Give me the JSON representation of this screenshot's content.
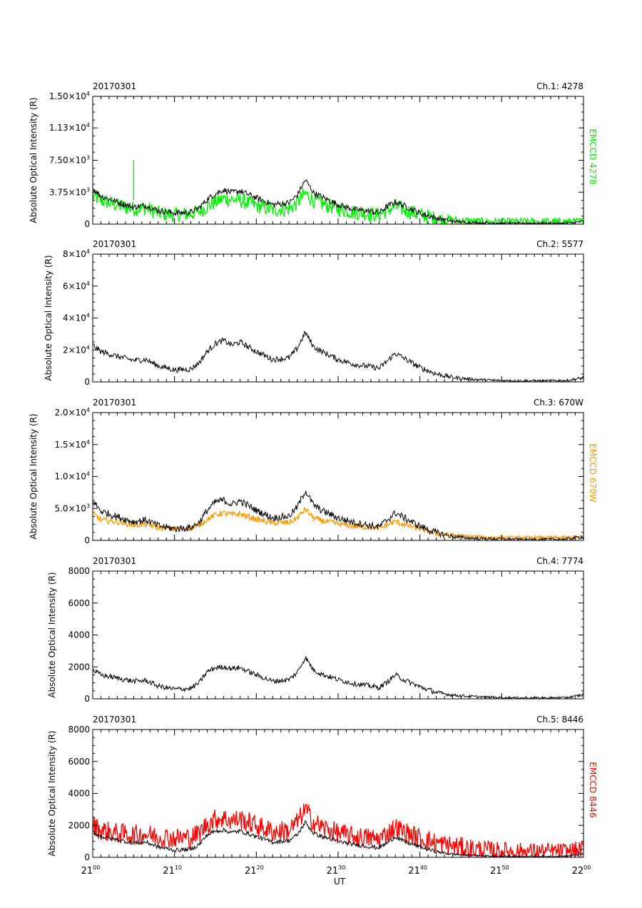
{
  "date": "20170301",
  "ylabel": "Absolute Optical Intensity (R)",
  "xlabel": "UT",
  "xaxis": {
    "range_min": [
      0,
      60
    ],
    "ticks": [
      {
        "min": 0,
        "hour": "21",
        "minute": "00"
      },
      {
        "min": 10,
        "hour": "21",
        "minute": "10"
      },
      {
        "min": 20,
        "hour": "21",
        "minute": "20"
      },
      {
        "min": 30,
        "hour": "21",
        "minute": "30"
      },
      {
        "min": 40,
        "hour": "21",
        "minute": "40"
      },
      {
        "min": 50,
        "hour": "21",
        "minute": "50"
      },
      {
        "min": 60,
        "hour": "22",
        "minute": "00"
      }
    ]
  },
  "colors": {
    "reference": "#000000",
    "ch1": "#00ee00",
    "ch3": "#ff9900",
    "ch5": "#ff0000"
  },
  "chart_data": [
    {
      "type": "line",
      "channel_label": "Ch.1: 4278",
      "date_label": "20170301",
      "ylim": [
        0,
        15000
      ],
      "yticks": [
        {
          "v": 0,
          "m": "0"
        },
        {
          "v": 3750,
          "m": "3.75",
          "e": "3"
        },
        {
          "v": 7500,
          "m": "7.50",
          "e": "3"
        },
        {
          "v": 11300,
          "m": "1.13",
          "e": "4"
        },
        {
          "v": 15000,
          "m": "1.50",
          "e": "4"
        }
      ],
      "right_label": "EMCCD 4278",
      "right_color": "#00ee00",
      "series": [
        {
          "name": "EMCCD 4278",
          "color": "#00ee00",
          "noise": 900,
          "x": [
            0,
            1,
            3,
            5,
            6.5,
            8,
            10,
            12,
            13,
            14,
            15,
            16,
            17,
            18,
            20,
            22,
            24,
            25,
            26,
            27,
            28,
            30,
            32,
            34,
            35,
            36,
            37,
            38,
            40,
            42,
            44,
            46,
            48,
            50,
            52,
            54,
            56,
            58,
            60
          ],
          "y": [
            3300,
            2800,
            2200,
            1800,
            1900,
            1300,
            1100,
            1200,
            1500,
            2100,
            2600,
            3000,
            2900,
            2800,
            2200,
            1700,
            1800,
            2500,
            3600,
            2800,
            2400,
            1800,
            1400,
            1200,
            1100,
            1600,
            2100,
            1700,
            1100,
            700,
            450,
            350,
            300,
            280,
            300,
            300,
            300,
            300,
            300
          ]
        },
        {
          "color": "#000000",
          "noise": 350,
          "x": [
            0,
            1,
            3,
            5,
            6.5,
            8,
            10,
            12,
            13,
            14,
            15,
            16,
            17,
            18,
            20,
            22,
            24,
            25,
            26,
            27,
            28,
            30,
            32,
            34,
            35,
            36,
            37,
            38,
            40,
            42,
            44,
            46,
            48,
            50,
            52,
            54,
            56,
            58,
            60
          ],
          "y": [
            4200,
            3300,
            2600,
            2000,
            2200,
            1600,
            1300,
            1400,
            1900,
            2900,
            3600,
            4000,
            3700,
            3900,
            3100,
            2300,
            2500,
            3400,
            5200,
            3700,
            3200,
            2300,
            1700,
            1500,
            1300,
            2100,
            2600,
            2200,
            1300,
            700,
            350,
            200,
            150,
            100,
            100,
            100,
            100,
            120,
            300
          ]
        },
        {
          "color": "#00ee00",
          "x": [
            5,
            5,
            5
          ],
          "y": [
            2800,
            7500,
            2800
          ]
        }
      ]
    },
    {
      "type": "line",
      "channel_label": "Ch.2: 5577",
      "date_label": "20170301",
      "ylim": [
        0,
        80000
      ],
      "yticks": [
        {
          "v": 0,
          "m": "0"
        },
        {
          "v": 20000,
          "m": "2",
          "e": "4"
        },
        {
          "v": 40000,
          "m": "4",
          "e": "4"
        },
        {
          "v": 60000,
          "m": "6",
          "e": "4"
        },
        {
          "v": 80000,
          "m": "8",
          "e": "4"
        }
      ],
      "series": [
        {
          "color": "#000000",
          "noise": 1800,
          "x": [
            0,
            1,
            3,
            5,
            6.5,
            8,
            10,
            12,
            13,
            14,
            15,
            16,
            17,
            18,
            20,
            22,
            24,
            25,
            26,
            27,
            28,
            30,
            32,
            34,
            35,
            36,
            37,
            38,
            40,
            42,
            44,
            46,
            48,
            50,
            52,
            54,
            56,
            58,
            60
          ],
          "y": [
            23000,
            19000,
            16000,
            13500,
            14000,
            10000,
            7500,
            8000,
            12000,
            19000,
            24000,
            26000,
            23000,
            25000,
            19000,
            14000,
            15000,
            21000,
            31000,
            22000,
            19000,
            14000,
            11000,
            9500,
            8500,
            13000,
            18000,
            15000,
            9000,
            5000,
            2800,
            1800,
            1200,
            900,
            700,
            700,
            700,
            900,
            2500
          ]
        }
      ]
    },
    {
      "type": "line",
      "channel_label": "Ch.3: 670W",
      "date_label": "20170301",
      "ylim": [
        0,
        20000
      ],
      "yticks": [
        {
          "v": 0,
          "m": "0"
        },
        {
          "v": 5000,
          "m": "5.0",
          "e": "3"
        },
        {
          "v": 10000,
          "m": "1.0",
          "e": "4"
        },
        {
          "v": 15000,
          "m": "1.5",
          "e": "4"
        },
        {
          "v": 20000,
          "m": "2.0",
          "e": "4"
        }
      ],
      "right_label": "EMCCD 670W",
      "right_color": "#ff9900",
      "series": [
        {
          "name": "EMCCD 670W",
          "color": "#ff9900",
          "noise": 450,
          "x": [
            0,
            1,
            3,
            5,
            6.5,
            8,
            10,
            12,
            13,
            14,
            15,
            16,
            17,
            18,
            20,
            22,
            24,
            25,
            26,
            27,
            28,
            30,
            32,
            34,
            35,
            36,
            37,
            38,
            40,
            42,
            44,
            46,
            48,
            50,
            52,
            54,
            56,
            58,
            60
          ],
          "y": [
            4200,
            3200,
            2900,
            2400,
            2500,
            2000,
            1800,
            1900,
            2400,
            3300,
            4000,
            4300,
            4000,
            4100,
            3300,
            2700,
            2800,
            3500,
            4900,
            3500,
            3100,
            2600,
            2200,
            2100,
            1900,
            2400,
            3000,
            2500,
            1800,
            1100,
            800,
            600,
            500,
            450,
            450,
            450,
            450,
            450,
            500
          ]
        },
        {
          "color": "#000000",
          "noise": 550,
          "x": [
            0,
            1,
            3,
            5,
            6.5,
            8,
            10,
            12,
            13,
            14,
            15,
            16,
            17,
            18,
            20,
            22,
            24,
            25,
            26,
            27,
            28,
            30,
            32,
            34,
            35,
            36,
            37,
            38,
            40,
            42,
            44,
            46,
            48,
            50,
            52,
            54,
            56,
            58,
            60
          ],
          "y": [
            6200,
            4600,
            3700,
            2900,
            3200,
            2300,
            1800,
            2000,
            2800,
            4700,
            6000,
            6300,
            5600,
            6200,
            4700,
            3500,
            3800,
            5200,
            7800,
            5500,
            4700,
            3500,
            2800,
            2300,
            2100,
            3200,
            4300,
            3600,
            2200,
            1200,
            600,
            350,
            250,
            200,
            150,
            150,
            150,
            200,
            600
          ]
        }
      ]
    },
    {
      "type": "line",
      "channel_label": "Ch.4: 7774",
      "date_label": "20170301",
      "ylim": [
        0,
        8000
      ],
      "yticks": [
        {
          "v": 0,
          "m": "0"
        },
        {
          "v": 2000,
          "m": "2000"
        },
        {
          "v": 4000,
          "m": "4000"
        },
        {
          "v": 6000,
          "m": "6000"
        },
        {
          "v": 8000,
          "m": "8000"
        }
      ],
      "series": [
        {
          "color": "#000000",
          "noise": 160,
          "x": [
            0,
            1,
            3,
            5,
            6.5,
            8,
            10,
            12,
            13,
            14,
            15,
            16,
            17,
            18,
            20,
            22,
            24,
            25,
            26,
            27,
            28,
            30,
            32,
            34,
            35,
            36,
            37,
            38,
            40,
            42,
            44,
            46,
            48,
            50,
            52,
            54,
            56,
            58,
            60
          ],
          "y": [
            1800,
            1500,
            1300,
            1100,
            1150,
            800,
            600,
            650,
            1000,
            1700,
            1950,
            2000,
            1900,
            1950,
            1500,
            1100,
            1200,
            1650,
            2600,
            1800,
            1550,
            1200,
            950,
            800,
            700,
            1050,
            1500,
            1200,
            750,
            400,
            230,
            160,
            110,
            80,
            60,
            60,
            60,
            80,
            250
          ]
        }
      ]
    },
    {
      "type": "line",
      "channel_label": "Ch.5: 8446",
      "date_label": "20170301",
      "ylim": [
        0,
        8000
      ],
      "yticks": [
        {
          "v": 0,
          "m": "0"
        },
        {
          "v": 2000,
          "m": "2000"
        },
        {
          "v": 4000,
          "m": "4000"
        },
        {
          "v": 6000,
          "m": "6000"
        },
        {
          "v": 8000,
          "m": "8000"
        }
      ],
      "right_label": "EMCCD 8446",
      "right_color": "#ff0000",
      "series": [
        {
          "name": "EMCCD 8446",
          "color": "#ff0000",
          "noise": 650,
          "x": [
            0,
            1,
            3,
            5,
            6.5,
            8,
            10,
            12,
            13,
            14,
            15,
            16,
            17,
            18,
            20,
            22,
            24,
            25,
            26,
            27,
            28,
            30,
            32,
            34,
            35,
            36,
            37,
            38,
            40,
            42,
            44,
            46,
            48,
            50,
            52,
            54,
            56,
            58,
            60
          ],
          "y": [
            2000,
            1700,
            1500,
            1400,
            1450,
            1300,
            1200,
            1250,
            1500,
            2100,
            2400,
            2450,
            2300,
            2400,
            2000,
            1600,
            1700,
            2200,
            3000,
            2200,
            1900,
            1500,
            1300,
            1200,
            1150,
            1500,
            1900,
            1600,
            1200,
            900,
            700,
            550,
            450,
            400,
            380,
            370,
            370,
            370,
            450
          ]
        },
        {
          "color": "#000000",
          "noise": 130,
          "x": [
            0,
            1,
            3,
            5,
            6.5,
            8,
            10,
            12,
            13,
            14,
            15,
            16,
            17,
            18,
            20,
            22,
            24,
            25,
            26,
            27,
            28,
            30,
            32,
            34,
            35,
            36,
            37,
            38,
            40,
            42,
            44,
            46,
            48,
            50,
            52,
            54,
            56,
            58,
            60
          ],
          "y": [
            1600,
            1300,
            1100,
            900,
            950,
            650,
            450,
            500,
            800,
            1400,
            1650,
            1700,
            1550,
            1650,
            1300,
            950,
            1050,
            1400,
            2200,
            1500,
            1300,
            1000,
            800,
            650,
            600,
            900,
            1300,
            1000,
            650,
            350,
            200,
            130,
            90,
            70,
            50,
            50,
            50,
            70,
            220
          ]
        }
      ]
    }
  ]
}
